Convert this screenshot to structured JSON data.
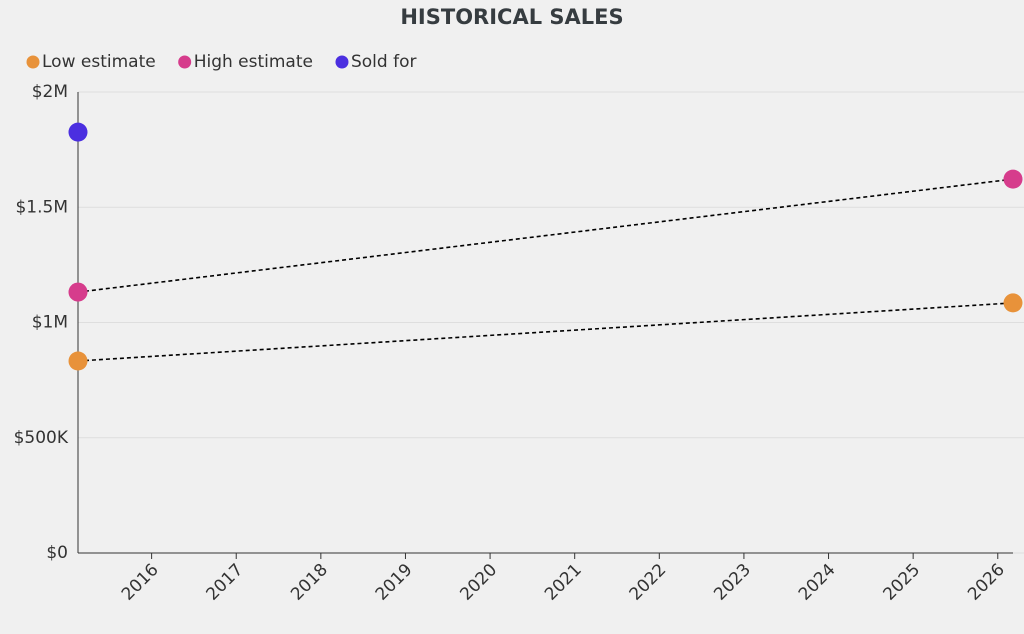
{
  "chart_data": {
    "type": "scatter",
    "title": "HISTORICAL SALES",
    "x": [
      2015.13,
      2026.18
    ],
    "series": [
      {
        "name": "Low estimate",
        "color": "#e8923a",
        "values": [
          833000,
          1085000
        ]
      },
      {
        "name": "High estimate",
        "color": "#d63c8c",
        "values": [
          1132000,
          1622000
        ]
      },
      {
        "name": "Sold for",
        "color": "#4b2fe0",
        "values": [
          1826000,
          null
        ]
      }
    ],
    "line_color": "#000000",
    "xlim": [
      2015.13,
      2026.18
    ],
    "xticks": [
      2016,
      2017,
      2018,
      2019,
      2020,
      2021,
      2022,
      2023,
      2024,
      2025,
      2026
    ],
    "ylim": [
      0,
      2000000
    ],
    "yticks": [
      {
        "value": 0,
        "label": "$0"
      },
      {
        "value": 500000,
        "label": "$500K"
      },
      {
        "value": 1000000,
        "label": "$1M"
      },
      {
        "value": 1500000,
        "label": "$1.5M"
      },
      {
        "value": 2000000,
        "label": "$2M"
      }
    ],
    "grid": true,
    "legend": "top-left"
  }
}
